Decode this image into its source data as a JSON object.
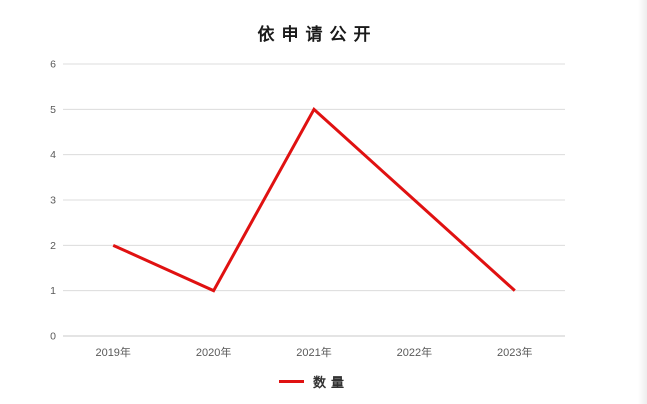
{
  "chart_data": {
    "type": "line",
    "title": "依申请公开",
    "categories": [
      "2019年",
      "2020年",
      "2021年",
      "2022年",
      "2023年"
    ],
    "series": [
      {
        "name": "数量",
        "values": [
          2,
          1,
          5,
          3,
          1
        ],
        "color": "#e01111"
      }
    ],
    "xlabel": "",
    "ylabel": "",
    "ylim": [
      0,
      6
    ],
    "yticks": [
      0,
      1,
      2,
      3,
      4,
      5,
      6
    ],
    "grid": "horizontal",
    "legend_position": "bottom",
    "colors": {
      "gridline": "#dcdcdc",
      "zero_line": "#c8c8c8",
      "tick_label": "#595959",
      "title": "#1a1a1a",
      "legend_label": "#333333"
    }
  }
}
